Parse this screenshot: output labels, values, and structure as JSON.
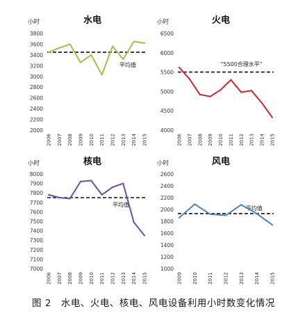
{
  "caption": "图 2　水电、火电、核电、风电设备利用小时数变化情况",
  "chart_data": [
    {
      "type": "line",
      "title": "水电",
      "ylabel": "小时",
      "color": "#9bc24a",
      "categories": [
        "2006",
        "2007",
        "2008",
        "2009",
        "2010",
        "2011",
        "2012",
        "2013",
        "2014",
        "2015"
      ],
      "series": [
        {
          "values": [
            3450,
            3530,
            3600,
            3260,
            3400,
            3030,
            3560,
            3320,
            3650,
            3620
          ]
        }
      ],
      "reference_line": {
        "value": 3450,
        "label": "平均值"
      },
      "ylim": [
        2000,
        3800
      ],
      "yticks": [
        2000,
        2200,
        2400,
        2600,
        2800,
        3000,
        3200,
        3400,
        3600,
        3800
      ]
    },
    {
      "type": "line",
      "title": "火电",
      "ylabel": "小时",
      "color": "#d9222a",
      "categories": [
        "2006",
        "2007",
        "2008",
        "2009",
        "2010",
        "2011",
        "2012",
        "2013",
        "2014",
        "2015"
      ],
      "series": [
        {
          "values": [
            5620,
            5320,
            4920,
            4870,
            5040,
            5300,
            4980,
            5020,
            4700,
            4330
          ]
        }
      ],
      "reference_line": {
        "value": 5500,
        "label": "“5500合理水平”"
      },
      "ylim": [
        4000,
        6500
      ],
      "yticks": [
        4000,
        4500,
        5000,
        5500,
        6000,
        6500
      ]
    },
    {
      "type": "line",
      "title": "核电",
      "ylabel": "小时",
      "color": "#6f4da0",
      "categories": [
        "2006",
        "2007",
        "2008",
        "2009",
        "2010",
        "2011",
        "2012",
        "2013",
        "2014",
        "2015"
      ],
      "series": [
        {
          "values": [
            7780,
            7750,
            7740,
            7920,
            7930,
            7780,
            7860,
            7900,
            7490,
            7350
          ]
        }
      ],
      "reference_line": {
        "value": 7750,
        "label": "平均值"
      },
      "ylim": [
        7000,
        8000
      ],
      "yticks": [
        7000,
        7100,
        7200,
        7300,
        7400,
        7500,
        7600,
        7700,
        7800,
        7900,
        8000
      ]
    },
    {
      "type": "line",
      "title": "风电",
      "ylabel": "小时",
      "color": "#4f81bd",
      "categories": [
        "2009",
        "2010",
        "2011",
        "2012",
        "2013",
        "2014",
        "2015"
      ],
      "series": [
        {
          "values": [
            1860,
            2090,
            1920,
            1900,
            2080,
            1930,
            1740
          ]
        }
      ],
      "reference_line": {
        "value": 1930,
        "label": "平均值"
      },
      "ylim": [
        1000,
        2600
      ],
      "yticks": [
        1000,
        1200,
        1400,
        1600,
        1800,
        2000,
        2200,
        2400,
        2600
      ]
    }
  ]
}
